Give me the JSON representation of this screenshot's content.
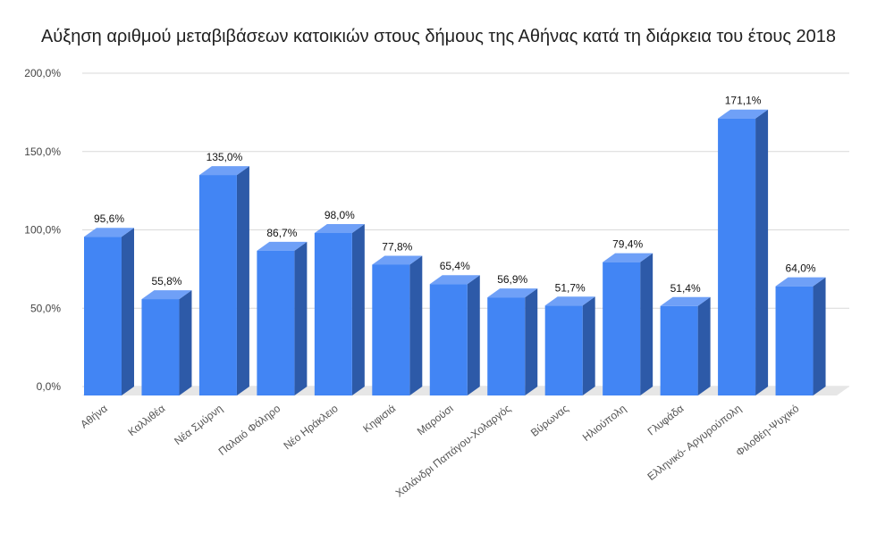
{
  "chart_data": {
    "type": "bar",
    "title": "Αύξηση αριθμού μεταβιβάσεων κατοικιών στους δήμους της Αθήνας κατά τη διάρκεια του έτους 2018",
    "categories": [
      "Αθήνα",
      "Καλλιθέα",
      "Νέα Σμύρνη",
      "Παλαιό Φάληρο",
      "Νέο Ηράκλειο",
      "Κηφισιά",
      "Μαρούσι",
      "Χαλάνδρι Παπάγου-Χολαργός",
      "Βύρωνας",
      "Ηλιούπολη",
      "Γλυφάδα",
      "Ελληνικό- Αργυρούπολη",
      "Φιλοθέη-Ψυχικό"
    ],
    "values": [
      95.6,
      55.8,
      135.0,
      86.7,
      98.0,
      77.8,
      65.4,
      56.9,
      51.7,
      79.4,
      51.4,
      171.1,
      64.0
    ],
    "data_labels": [
      "95,6%",
      "55,8%",
      "135,0%",
      "86,7%",
      "98,0%",
      "77,8%",
      "65,4%",
      "56,9%",
      "51,7%",
      "79,4%",
      "51,4%",
      "171,1%",
      "64,0%"
    ],
    "ylim": [
      0,
      200
    ],
    "yticks": [
      0,
      50,
      100,
      150,
      200
    ],
    "ytick_labels": [
      "0,0%",
      "50,0%",
      "100,0%",
      "150,0%",
      "200,0%"
    ],
    "xlabel": "",
    "ylabel": "",
    "grid": true,
    "legend": "none",
    "style": "3d-bar"
  },
  "colors": {
    "bar_front": "#4285f4",
    "bar_top": "#6fa0f7",
    "bar_side": "#2d5aa8",
    "floor": "#e6e6e6"
  }
}
